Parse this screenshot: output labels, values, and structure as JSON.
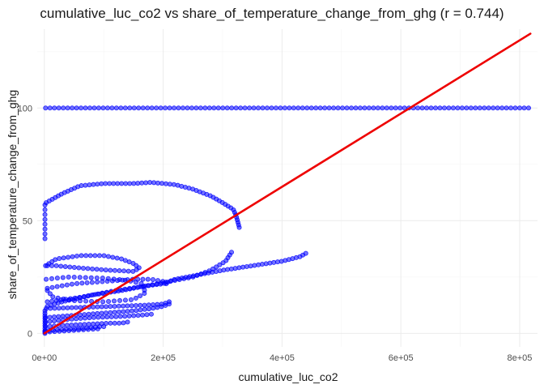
{
  "chart_data": {
    "type": "scatter",
    "title": "cumulative_luc_co2 vs share_of_temperature_change_from_ghg (r = 0.744)",
    "xlabel": "cumulative_luc_co2",
    "ylabel": "share_of_temperature_change_from_ghg",
    "xlim": [
      -12000,
      830000
    ],
    "ylim": [
      -6,
      135
    ],
    "x_ticks": [
      0,
      200000,
      400000,
      600000,
      800000
    ],
    "x_tick_labels": [
      "0e+00",
      "2e+05",
      "4e+05",
      "6e+05",
      "8e+05"
    ],
    "y_ticks": [
      0,
      50,
      100
    ],
    "y_tick_labels": [
      "0",
      "50",
      "100"
    ],
    "grid": true,
    "legend": "none",
    "colors": {
      "points": "#0000ff",
      "fit_line": "#ee0000"
    },
    "point_paths": [
      {
        "x": [
          2000,
          815000
        ],
        "y": [
          100,
          100
        ],
        "n": 110
      },
      {
        "x": [
          1000,
          1000
        ],
        "y": [
          42,
          57
        ],
        "n": 8
      },
      {
        "x": [
          3000,
          10000,
          30000,
          60000,
          100000,
          150000,
          180000,
          220000,
          250000,
          280000,
          300000,
          318000,
          323000,
          328000
        ],
        "y": [
          58,
          59,
          62,
          65.5,
          66.5,
          66.5,
          67,
          66,
          64,
          61,
          58,
          55,
          52,
          47
        ],
        "n": 60
      },
      {
        "x": [
          5000,
          30000,
          80000,
          130000,
          170000,
          200000,
          220000,
          260000,
          300000,
          350000,
          400000,
          430000,
          440000
        ],
        "y": [
          12,
          14,
          17,
          19,
          21,
          22,
          24,
          26,
          28,
          30,
          32,
          34,
          35.5
        ],
        "n": 70
      },
      {
        "x": [
          5000,
          60000,
          120000,
          170000,
          210000,
          250000,
          280000,
          305000,
          315000
        ],
        "y": [
          14,
          16,
          19,
          21,
          23,
          25,
          28,
          32,
          36
        ],
        "n": 45
      },
      {
        "x": [
          2000,
          20000,
          60000,
          100000,
          130000,
          150000,
          160000,
          150000,
          110000,
          60000,
          20000,
          5000
        ],
        "y": [
          30,
          33,
          34.5,
          34.5,
          33,
          31,
          29,
          27.5,
          28,
          29,
          30,
          30
        ],
        "n": 45
      },
      {
        "x": [
          3000,
          40000,
          100000,
          140000,
          165000,
          170000,
          150000,
          100000,
          50000,
          15000,
          5000
        ],
        "y": [
          24,
          25,
          24.5,
          23.5,
          22,
          18,
          15,
          14,
          14.5,
          16,
          19
        ],
        "n": 40
      },
      {
        "x": [
          5000,
          50000,
          100000,
          150000,
          180000,
          200000,
          205000
        ],
        "y": [
          20,
          22,
          23,
          24,
          24,
          23,
          22
        ],
        "n": 25
      },
      {
        "x": [
          3000,
          60000,
          120000,
          170000,
          200000,
          210000
        ],
        "y": [
          11,
          11.5,
          12,
          12.5,
          13,
          14
        ],
        "n": 30
      },
      {
        "x": [
          2000,
          50000,
          100000,
          150000,
          180000,
          200000,
          210000
        ],
        "y": [
          7,
          8,
          9,
          10,
          11,
          12,
          13
        ],
        "n": 30
      },
      {
        "x": [
          2000,
          30000,
          80000,
          130000,
          160000,
          180000
        ],
        "y": [
          5,
          6,
          7,
          7.5,
          8,
          8.5
        ],
        "n": 25
      },
      {
        "x": [
          2000,
          30000,
          70000,
          110000,
          130000,
          140000
        ],
        "y": [
          3,
          3.5,
          4,
          4.5,
          4.5,
          5
        ],
        "n": 20
      },
      {
        "x": [
          1000,
          20000,
          50000,
          80000,
          95000,
          100000
        ],
        "y": [
          1,
          1.5,
          2,
          2.5,
          3,
          3
        ],
        "n": 15
      },
      {
        "x": [
          1000,
          1000
        ],
        "y": [
          0,
          10
        ],
        "n": 10
      },
      {
        "x": [
          1000,
          30000,
          60000,
          90000
        ],
        "y": [
          0.5,
          1,
          1.5,
          2
        ],
        "n": 12
      }
    ],
    "fit_line": {
      "x": [
        0,
        818000
      ],
      "y": [
        0,
        133
      ]
    }
  }
}
